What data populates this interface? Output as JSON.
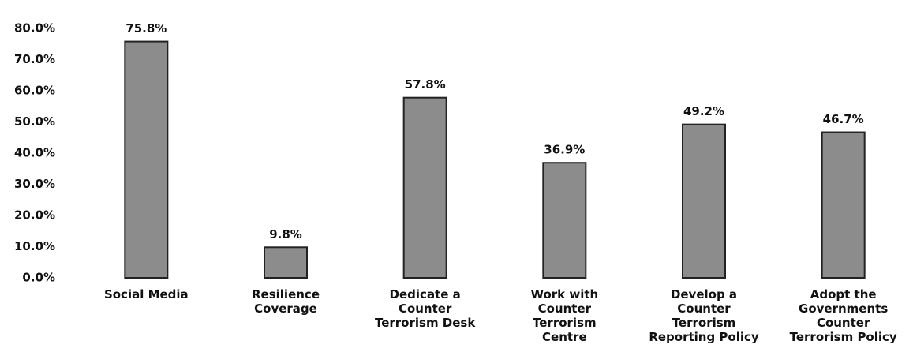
{
  "chart_data": {
    "type": "bar",
    "categories": [
      "Social Media",
      "Resilience Coverage",
      "Dedicate a Counter Terrorism Desk",
      "Work with Counter Terrorism Centre",
      "Develop a Counter Terrorism Reporting Policy",
      "Adopt the Governments Counter Terrorism Policy"
    ],
    "values": [
      75.8,
      9.8,
      57.8,
      36.9,
      49.2,
      46.7
    ],
    "value_labels": [
      "75.8%",
      "9.8%",
      "57.8%",
      "36.9%",
      "49.2%",
      "46.7%"
    ],
    "color": "#8c8c8c",
    "ylim": [
      0,
      80
    ],
    "yticks": [
      {
        "value": 0,
        "label": "0.0%"
      },
      {
        "value": 10,
        "label": "10.0%"
      },
      {
        "value": 20,
        "label": "20.0%"
      },
      {
        "value": 30,
        "label": "30.0%"
      },
      {
        "value": 40,
        "label": "40.0%"
      },
      {
        "value": 50,
        "label": "50.0%"
      },
      {
        "value": 60,
        "label": "60.0%"
      },
      {
        "value": 70,
        "label": "70.0%"
      },
      {
        "value": 80,
        "label": "80.0%"
      }
    ],
    "grid": false
  }
}
